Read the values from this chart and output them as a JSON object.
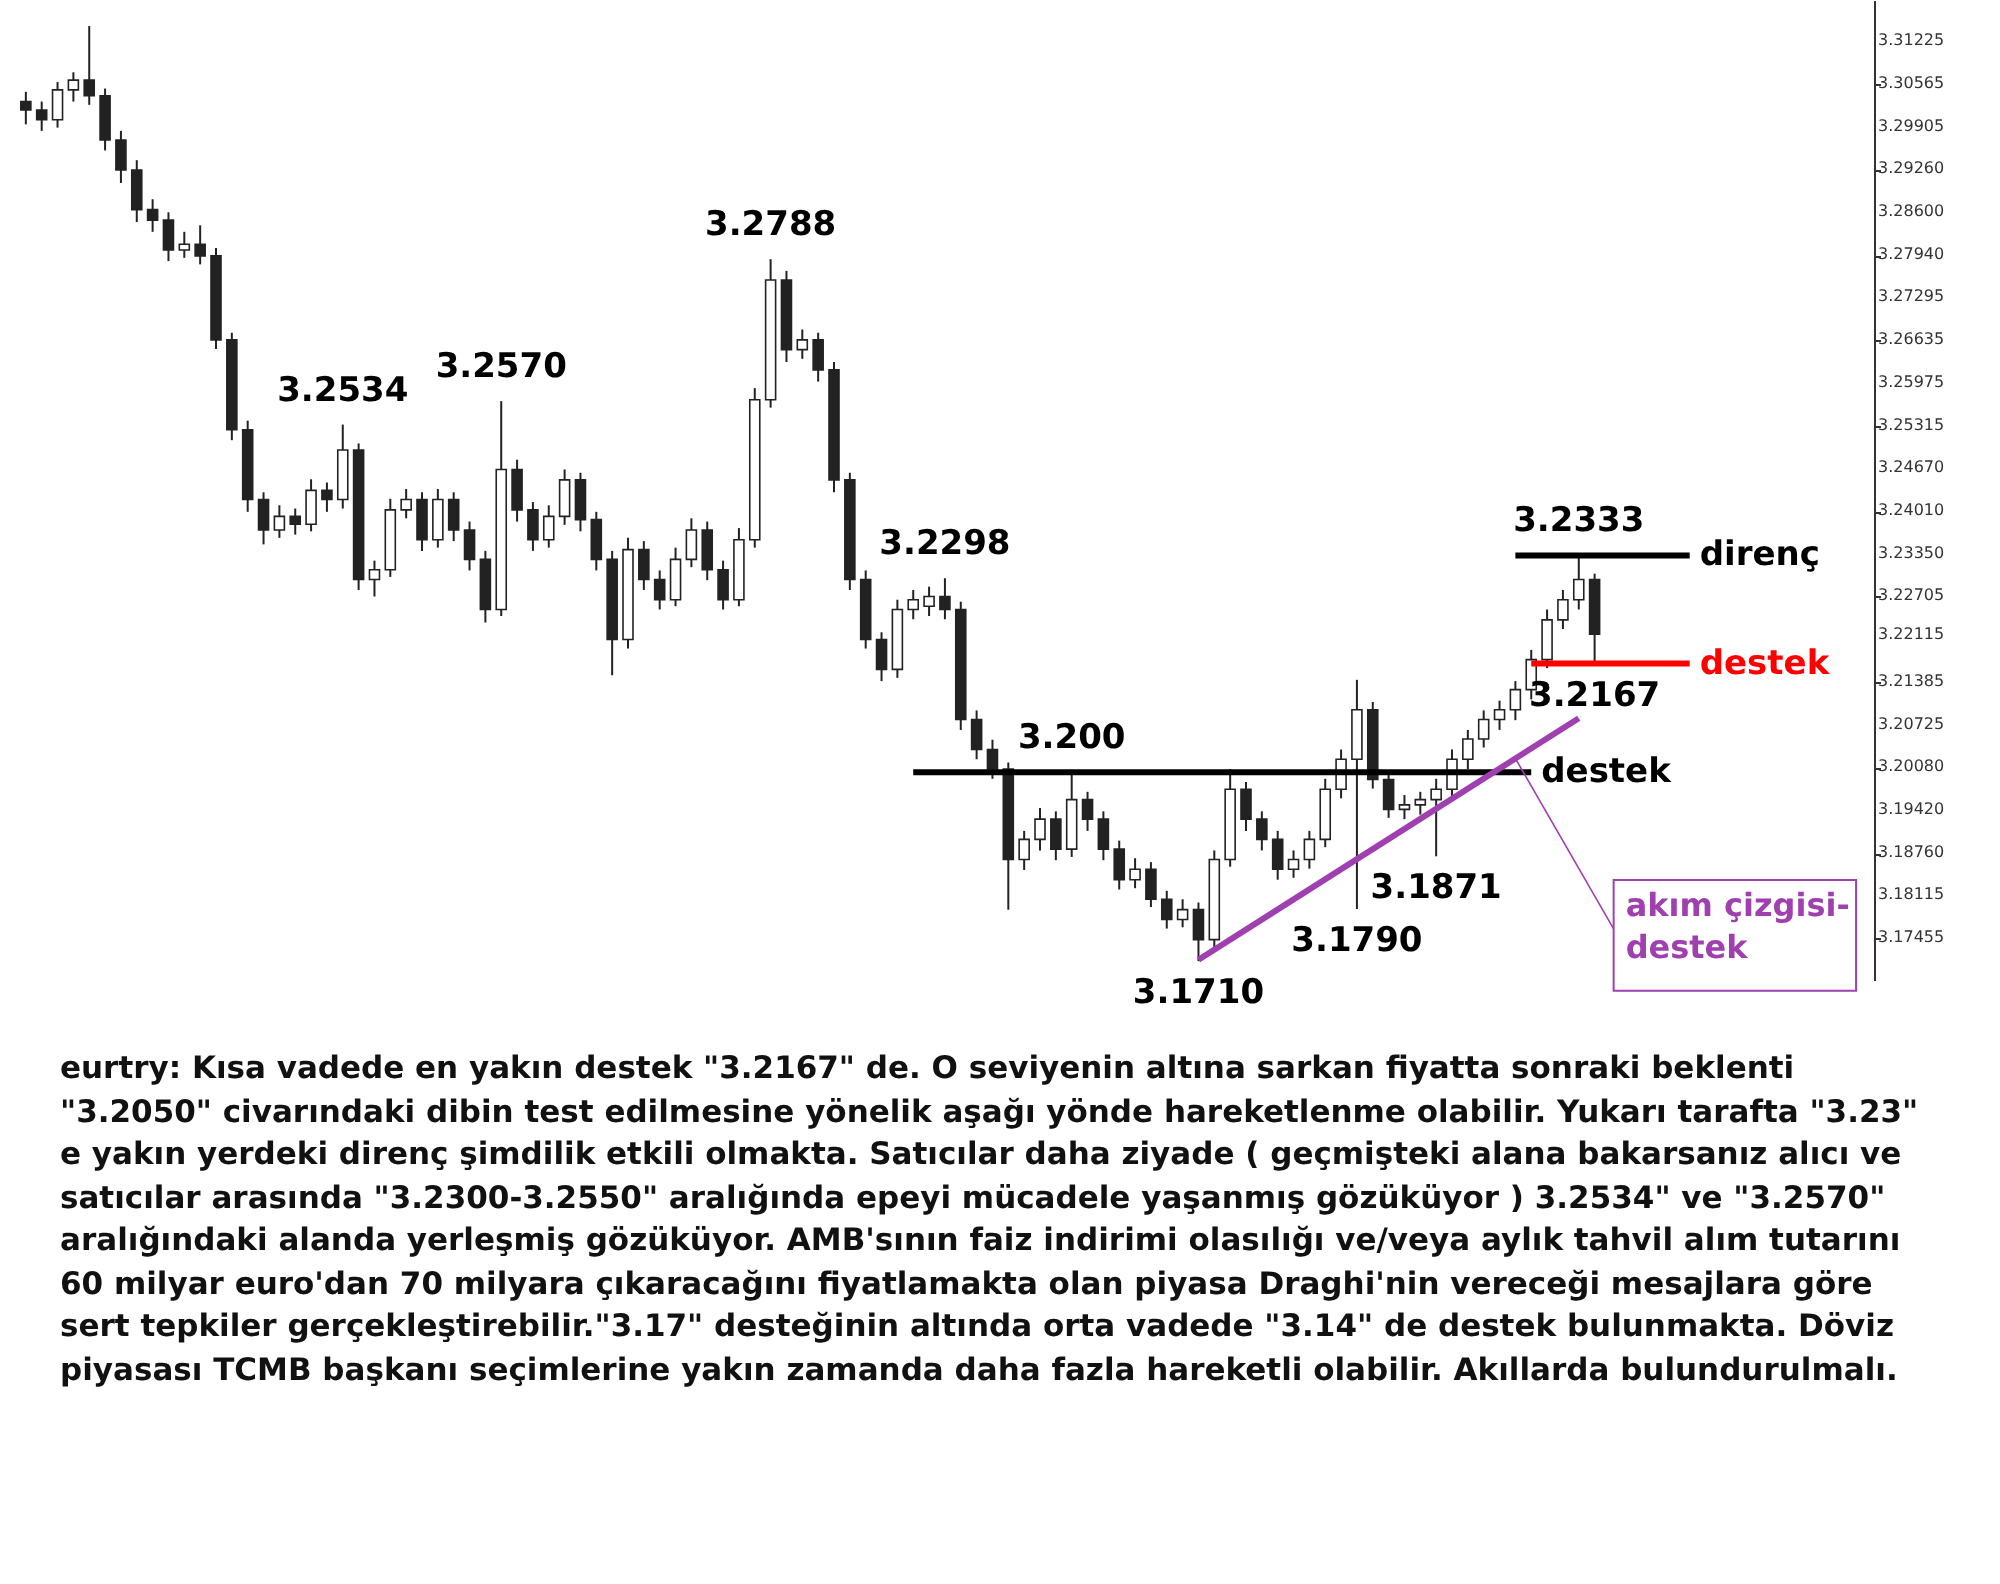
{
  "chart_data": {
    "type": "candlestick",
    "tick_labels": "y",
    "categories": [
      null,
      null,
      null,
      null,
      null,
      null,
      null,
      null,
      null,
      null,
      null,
      null,
      null,
      null,
      null,
      null,
      null,
      null,
      null,
      null,
      null,
      null,
      null,
      null,
      null,
      null,
      null,
      null,
      null,
      null,
      null,
      null,
      null,
      null,
      null,
      null,
      null,
      null,
      null,
      null,
      null,
      null,
      null,
      null,
      null,
      null,
      null,
      null,
      null,
      null,
      null,
      null,
      null,
      null,
      null,
      null,
      null,
      null,
      null,
      null,
      null,
      null,
      null,
      null,
      null,
      null,
      null,
      null,
      null,
      null,
      null,
      null,
      null,
      null,
      null,
      null,
      null,
      null,
      null,
      null,
      null,
      null,
      null,
      null,
      null,
      null,
      null,
      null,
      null,
      null,
      null,
      null,
      null,
      null,
      null,
      null,
      null,
      null,
      null,
      null,
      null,
      null,
      null,
      null,
      null,
      null,
      null,
      null,
      null,
      null,
      null,
      null,
      null,
      null,
      null,
      null
    ],
    "ylim": [
      3.1681,
      3.3186
    ],
    "yticks": [
      {
        "value": 3.17455,
        "label": "3.17455"
      },
      {
        "value": 3.18115,
        "label": "3.18115"
      },
      {
        "value": 3.1876,
        "label": "3.18760"
      },
      {
        "value": 3.1942,
        "label": "3.19420"
      },
      {
        "value": 3.2008,
        "label": "3.20080"
      },
      {
        "value": 3.20725,
        "label": "3.20725"
      },
      {
        "value": 3.21385,
        "label": "3.21385"
      },
      {
        "value": 3.22115,
        "label": "3.22115"
      },
      {
        "value": 3.22705,
        "label": "3.22705"
      },
      {
        "value": 3.2335,
        "label": "3.23350"
      },
      {
        "value": 3.2401,
        "label": "3.24010"
      },
      {
        "value": 3.2467,
        "label": "3.24670"
      },
      {
        "value": 3.25315,
        "label": "3.25315"
      },
      {
        "value": 3.25975,
        "label": "3.25975"
      },
      {
        "value": 3.26635,
        "label": "3.26635"
      },
      {
        "value": 3.27295,
        "label": "3.27295"
      },
      {
        "value": 3.2794,
        "label": "3.27940"
      },
      {
        "value": 3.286,
        "label": "3.28600"
      },
      {
        "value": 3.2926,
        "label": "3.29260"
      },
      {
        "value": 3.29905,
        "label": "3.29905"
      },
      {
        "value": 3.30565,
        "label": "3.30565"
      },
      {
        "value": 3.31225,
        "label": "3.31225"
      }
    ],
    "series": [
      {
        "color": "#222222",
        "ohlc": [
          [
            3.303,
            3.3045,
            3.2995,
            3.3017
          ],
          [
            3.3017,
            3.303,
            3.2985,
            3.3002
          ],
          [
            3.3002,
            3.306,
            3.299,
            3.3048
          ],
          [
            3.3048,
            3.3075,
            3.303,
            3.3063
          ],
          [
            3.3063,
            3.3146,
            3.3025,
            3.3039
          ],
          [
            3.3039,
            3.305,
            3.2955,
            3.2971
          ],
          [
            3.2971,
            3.2985,
            3.2905,
            3.2925
          ],
          [
            3.2925,
            3.294,
            3.2845,
            3.2864
          ],
          [
            3.2864,
            3.288,
            3.283,
            3.2848
          ],
          [
            3.2848,
            3.286,
            3.2785,
            3.2802
          ],
          [
            3.2802,
            3.283,
            3.279,
            3.2811
          ],
          [
            3.2811,
            3.284,
            3.278,
            3.2793
          ],
          [
            3.2793,
            3.2805,
            3.265,
            3.2664
          ],
          [
            3.2664,
            3.2675,
            3.251,
            3.2526
          ],
          [
            3.2526,
            3.254,
            3.24,
            3.2419
          ],
          [
            3.2419,
            3.243,
            3.235,
            3.2372
          ],
          [
            3.2372,
            3.241,
            3.236,
            3.2393
          ],
          [
            3.2393,
            3.2405,
            3.2365,
            3.2381
          ],
          [
            3.2381,
            3.245,
            3.237,
            3.2433
          ],
          [
            3.2433,
            3.2445,
            3.24,
            3.2419
          ],
          [
            3.2419,
            3.2534,
            3.2405,
            3.2495
          ],
          [
            3.2495,
            3.2505,
            3.228,
            3.2296
          ],
          [
            3.2296,
            3.2325,
            3.227,
            3.2311
          ],
          [
            3.2311,
            3.242,
            3.23,
            3.2403
          ],
          [
            3.2403,
            3.2435,
            3.239,
            3.2419
          ],
          [
            3.2419,
            3.243,
            3.234,
            3.2357
          ],
          [
            3.2357,
            3.2435,
            3.2345,
            3.2419
          ],
          [
            3.2419,
            3.243,
            3.2355,
            3.2372
          ],
          [
            3.2372,
            3.2385,
            3.231,
            3.2327
          ],
          [
            3.2327,
            3.234,
            3.223,
            3.225
          ],
          [
            3.225,
            3.257,
            3.224,
            3.2465
          ],
          [
            3.2465,
            3.248,
            3.2385,
            3.2403
          ],
          [
            3.2403,
            3.2415,
            3.234,
            3.2357
          ],
          [
            3.2357,
            3.241,
            3.2345,
            3.2393
          ],
          [
            3.2393,
            3.2465,
            3.238,
            3.2449
          ],
          [
            3.2449,
            3.246,
            3.237,
            3.2388
          ],
          [
            3.2388,
            3.24,
            3.231,
            3.2327
          ],
          [
            3.2327,
            3.234,
            3.2149,
            3.2204
          ],
          [
            3.2204,
            3.236,
            3.219,
            3.2342
          ],
          [
            3.2342,
            3.2355,
            3.228,
            3.2296
          ],
          [
            3.2296,
            3.231,
            3.225,
            3.2265
          ],
          [
            3.2265,
            3.2345,
            3.2255,
            3.2327
          ],
          [
            3.2327,
            3.239,
            3.2315,
            3.2372
          ],
          [
            3.2372,
            3.2385,
            3.2295,
            3.2311
          ],
          [
            3.2311,
            3.2325,
            3.225,
            3.2265
          ],
          [
            3.2265,
            3.2375,
            3.2255,
            3.2357
          ],
          [
            3.2357,
            3.259,
            3.2345,
            3.2572
          ],
          [
            3.2572,
            3.2788,
            3.256,
            3.2756
          ],
          [
            3.2756,
            3.277,
            3.263,
            3.2649
          ],
          [
            3.2649,
            3.268,
            3.2635,
            3.2664
          ],
          [
            3.2664,
            3.2675,
            3.26,
            3.2618
          ],
          [
            3.2618,
            3.263,
            3.243,
            3.2449
          ],
          [
            3.2449,
            3.246,
            3.228,
            3.2296
          ],
          [
            3.2296,
            3.231,
            3.219,
            3.2204
          ],
          [
            3.2204,
            3.2215,
            3.214,
            3.2158
          ],
          [
            3.2158,
            3.2265,
            3.2145,
            3.225
          ],
          [
            3.225,
            3.228,
            3.2235,
            3.2265
          ],
          [
            3.2255,
            3.2285,
            3.224,
            3.227
          ],
          [
            3.227,
            3.2298,
            3.2235,
            3.225
          ],
          [
            3.225,
            3.2262,
            3.2065,
            3.2081
          ],
          [
            3.2081,
            3.2095,
            3.202,
            3.2035
          ],
          [
            3.2035,
            3.205,
            3.199,
            3.2005
          ],
          [
            3.2005,
            3.2015,
            3.1789,
            3.1866
          ],
          [
            3.1866,
            3.191,
            3.185,
            3.1897
          ],
          [
            3.1897,
            3.1945,
            3.188,
            3.1928
          ],
          [
            3.1928,
            3.194,
            3.1865,
            3.1882
          ],
          [
            3.1882,
            3.2,
            3.187,
            3.1958
          ],
          [
            3.1958,
            3.197,
            3.191,
            3.1928
          ],
          [
            3.1928,
            3.194,
            3.1865,
            3.1882
          ],
          [
            3.1882,
            3.1895,
            3.182,
            3.1835
          ],
          [
            3.1835,
            3.1868,
            3.1822,
            3.1851
          ],
          [
            3.1851,
            3.1862,
            3.1793,
            3.1805
          ],
          [
            3.1805,
            3.1818,
            3.176,
            3.1774
          ],
          [
            3.1774,
            3.1805,
            3.1762,
            3.1789
          ],
          [
            3.1789,
            3.18,
            3.171,
            3.1743
          ],
          [
            3.1743,
            3.188,
            3.173,
            3.1866
          ],
          [
            3.1866,
            3.2005,
            3.1855,
            3.1974
          ],
          [
            3.1974,
            3.1985,
            3.191,
            3.1928
          ],
          [
            3.1928,
            3.194,
            3.188,
            3.1897
          ],
          [
            3.1897,
            3.191,
            3.1835,
            3.1851
          ],
          [
            3.1851,
            3.188,
            3.1838,
            3.1866
          ],
          [
            3.1866,
            3.191,
            3.1852,
            3.1897
          ],
          [
            3.1897,
            3.199,
            3.1885,
            3.1974
          ],
          [
            3.1974,
            3.2035,
            3.196,
            3.202
          ],
          [
            3.202,
            3.2142,
            3.179,
            3.2096
          ],
          [
            3.2096,
            3.2108,
            3.1975,
            3.1989
          ],
          [
            3.1989,
            3.2,
            3.193,
            3.1943
          ],
          [
            3.1943,
            3.1965,
            3.1928,
            3.195
          ],
          [
            3.195,
            3.197,
            3.1935,
            3.1958
          ],
          [
            3.1958,
            3.199,
            3.1871,
            3.1974
          ],
          [
            3.1974,
            3.2035,
            3.196,
            3.202
          ],
          [
            3.202,
            3.2065,
            3.2005,
            3.2051
          ],
          [
            3.2051,
            3.2095,
            3.2038,
            3.2081
          ],
          [
            3.2081,
            3.211,
            3.2065,
            3.2096
          ],
          [
            3.2096,
            3.214,
            3.208,
            3.2127
          ],
          [
            3.2127,
            3.2188,
            3.2112,
            3.2173
          ],
          [
            3.2173,
            3.225,
            3.216,
            3.2234
          ],
          [
            3.2234,
            3.228,
            3.222,
            3.2265
          ],
          [
            3.2265,
            3.2333,
            3.225,
            3.2296
          ],
          [
            3.2296,
            3.2305,
            3.217,
            3.2212
          ],
          null,
          null,
          null,
          null,
          null,
          null,
          null,
          null,
          null,
          null,
          null,
          null,
          null,
          null,
          null,
          null
        ]
      },
      {
        "type": "line",
        "name": "destek",
        "color": "#000000",
        "values": [
          null,
          null,
          null,
          null,
          null,
          null,
          null,
          null,
          null,
          null,
          null,
          null,
          null,
          null,
          null,
          null,
          null,
          null,
          null,
          null,
          null,
          null,
          null,
          null,
          null,
          null,
          null,
          null,
          null,
          null,
          null,
          null,
          null,
          null,
          null,
          null,
          null,
          null,
          null,
          null,
          null,
          null,
          null,
          null,
          null,
          null,
          null,
          null,
          null,
          null,
          null,
          null,
          null,
          null,
          null,
          null,
          3.2,
          null,
          null,
          null,
          null,
          null,
          null,
          null,
          null,
          null,
          null,
          null,
          null,
          null,
          null,
          null,
          null,
          null,
          null,
          null,
          null,
          null,
          null,
          null,
          null,
          null,
          null,
          null,
          null,
          null,
          null,
          null,
          null,
          null,
          null,
          null,
          null,
          null,
          null,
          3.2,
          null,
          null,
          null,
          null,
          null,
          null,
          null,
          null,
          null,
          null,
          null,
          null,
          null,
          null,
          null,
          null,
          null,
          null,
          null,
          null
        ]
      },
      {
        "type": "line",
        "name": "direnç",
        "color": "#000000",
        "values": [
          null,
          null,
          null,
          null,
          null,
          null,
          null,
          null,
          null,
          null,
          null,
          null,
          null,
          null,
          null,
          null,
          null,
          null,
          null,
          null,
          null,
          null,
          null,
          null,
          null,
          null,
          null,
          null,
          null,
          null,
          null,
          null,
          null,
          null,
          null,
          null,
          null,
          null,
          null,
          null,
          null,
          null,
          null,
          null,
          null,
          null,
          null,
          null,
          null,
          null,
          null,
          null,
          null,
          null,
          null,
          null,
          null,
          null,
          null,
          null,
          null,
          null,
          null,
          null,
          null,
          null,
          null,
          null,
          null,
          null,
          null,
          null,
          null,
          null,
          null,
          null,
          null,
          null,
          null,
          null,
          null,
          null,
          null,
          null,
          null,
          null,
          null,
          null,
          null,
          null,
          null,
          null,
          null,
          null,
          3.2333,
          null,
          null,
          null,
          null,
          null,
          null,
          null,
          null,
          null,
          null,
          3.2333,
          null,
          null,
          null,
          null,
          null,
          null,
          null,
          null,
          null,
          null
        ]
      },
      {
        "type": "line",
        "name": "destek",
        "color": "#ff0000",
        "values": [
          null,
          null,
          null,
          null,
          null,
          null,
          null,
          null,
          null,
          null,
          null,
          null,
          null,
          null,
          null,
          null,
          null,
          null,
          null,
          null,
          null,
          null,
          null,
          null,
          null,
          null,
          null,
          null,
          null,
          null,
          null,
          null,
          null,
          null,
          null,
          null,
          null,
          null,
          null,
          null,
          null,
          null,
          null,
          null,
          null,
          null,
          null,
          null,
          null,
          null,
          null,
          null,
          null,
          null,
          null,
          null,
          null,
          null,
          null,
          null,
          null,
          null,
          null,
          null,
          null,
          null,
          null,
          null,
          null,
          null,
          null,
          null,
          null,
          null,
          null,
          null,
          null,
          null,
          null,
          null,
          null,
          null,
          null,
          null,
          null,
          null,
          null,
          null,
          null,
          null,
          null,
          null,
          null,
          null,
          null,
          3.2167,
          null,
          null,
          null,
          null,
          null,
          null,
          null,
          null,
          null,
          3.2167,
          null,
          null,
          null,
          null,
          null,
          null,
          null,
          null,
          null,
          null
        ]
      },
      {
        "type": "line",
        "name": "akım çizgisi-destek",
        "color": "#a040b0",
        "values": [
          null,
          null,
          null,
          null,
          null,
          null,
          null,
          null,
          null,
          null,
          null,
          null,
          null,
          null,
          null,
          null,
          null,
          null,
          null,
          null,
          null,
          null,
          null,
          null,
          null,
          null,
          null,
          null,
          null,
          null,
          null,
          null,
          null,
          null,
          null,
          null,
          null,
          null,
          null,
          null,
          null,
          null,
          null,
          null,
          null,
          null,
          null,
          null,
          null,
          null,
          null,
          null,
          null,
          null,
          null,
          null,
          null,
          null,
          null,
          null,
          null,
          null,
          null,
          null,
          null,
          null,
          null,
          null,
          null,
          null,
          null,
          null,
          null,
          null,
          3.1712,
          null,
          null,
          null,
          null,
          null,
          null,
          null,
          null,
          null,
          null,
          null,
          null,
          null,
          null,
          null,
          null,
          null,
          null,
          null,
          null,
          null,
          null,
          null,
          3.2083,
          null,
          null,
          null,
          null,
          null,
          null,
          null,
          null,
          null,
          null,
          null,
          null,
          null,
          null,
          null,
          null,
          null
        ]
      }
    ],
    "annotations": [
      {
        "text": "3.2534",
        "y": 3.2534
      },
      {
        "text": "3.2570",
        "y": 3.257
      },
      {
        "text": "3.2788",
        "y": 3.2788
      },
      {
        "text": "3.2298",
        "y": 3.2298
      },
      {
        "text": "3.200",
        "y": 3.2
      },
      {
        "text": "3.1710",
        "y": 3.171
      },
      {
        "text": "3.1790",
        "y": 3.179
      },
      {
        "text": "3.1871",
        "y": 3.1871
      },
      {
        "text": "3.2333",
        "y": 3.2333
      },
      {
        "text": "3.2167",
        "y": 3.2167
      },
      "eurtry: Kısa vadede en yakın destek \"3.2167\" de. O seviyenin altına sarkan fiyatta sonraki beklenti \"3.2050\" civarındaki dibin test edilmesine yönelik aşağı yönde hareketlenme olabilir. Yukarı tarafta \"3.23\" e yakın yerdeki direnç şimdilik etkili olmakta. Satıcılar daha ziyade ( geçmişteki alana bakarsanız alıcı ve satıcılar arasında \"3.2300-3.2550\" aralığında epeyi mücadele yaşanmış gözüküyor )  3.2534\" ve \"3.2570\" aralığındaki alanda yerleşmiş gözüküyor. AMB'sının faiz indirimi olasılığı ve/veya aylık tahvil alım tutarını 60 milyar euro'dan 70 milyara çıkaracağını fiyatlamakta olan piyasa Draghi'nin vereceği mesajlara göre sert tepkiler gerçekleştirebilir.\"3.17\" desteğinin altında orta vadede \"3.14\" de destek bulunmakta. Döviz piyasası TCMB başkanı seçimlerine yakın zamanda daha fazla hareketli olabilir. Akıllarda bulundurulmalı."
    ]
  }
}
